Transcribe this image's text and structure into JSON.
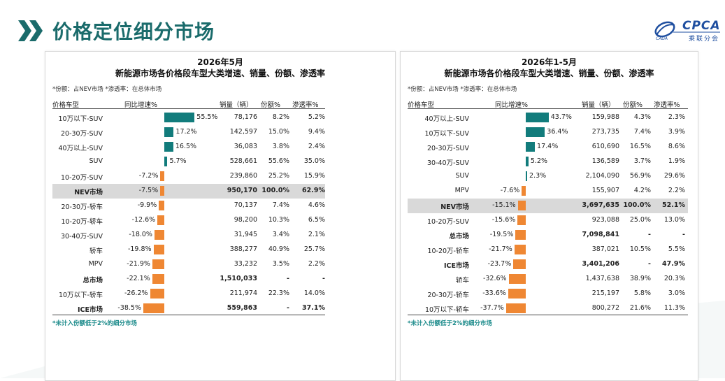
{
  "header": {
    "title": "价格定位细分市场",
    "logo_text": "CPCA",
    "logo_sub": "乘联分会",
    "logo_small": "CADA",
    "brand_color": "#1a6b6b",
    "chevron_color": "#1a6b6b",
    "logo_color": "#1f4fa0"
  },
  "colors": {
    "positive_bar": "#127c7c",
    "negative_bar": "#ef8733",
    "highlight_row": "#d9d9d9"
  },
  "left": {
    "title1": "2026年5月",
    "title2": "新能源市场各价格段车型大类增速、销量、份额、渗透率",
    "note": "*份额：占NEV市场  *渗透率：在总体市场",
    "columns": {
      "name": "价格车型",
      "growth": "同比增速%",
      "sales": "销量（辆）",
      "share": "份额%",
      "penetration": "渗透率%"
    },
    "footnote": "*未计入份额低于2%的细分市场",
    "rows": [
      {
        "name": "10万以下-SUV",
        "growth": 55.5,
        "growth_label": "55.5%",
        "sales": "78,176",
        "share": "8.2%",
        "penetration": "5.2%"
      },
      {
        "name": "20-30万-SUV",
        "growth": 17.2,
        "growth_label": "17.2%",
        "sales": "142,597",
        "share": "15.0%",
        "penetration": "9.4%"
      },
      {
        "name": "40万以上-SUV",
        "growth": 16.5,
        "growth_label": "16.5%",
        "sales": "36,083",
        "share": "3.8%",
        "penetration": "2.4%"
      },
      {
        "name": "SUV",
        "growth": 5.7,
        "growth_label": "5.7%",
        "sales": "528,661",
        "share": "55.6%",
        "penetration": "35.0%"
      },
      {
        "name": "10-20万-SUV",
        "growth": -7.2,
        "growth_label": "-7.2%",
        "sales": "239,860",
        "share": "25.2%",
        "penetration": "15.9%"
      },
      {
        "name": "NEV市场",
        "growth": -7.5,
        "growth_label": "-7.5%",
        "sales": "950,170",
        "share": "100.0%",
        "penetration": "62.9%",
        "bold": true,
        "highlight": true
      },
      {
        "name": "20-30万-轿车",
        "growth": -9.9,
        "growth_label": "-9.9%",
        "sales": "70,137",
        "share": "7.4%",
        "penetration": "4.6%"
      },
      {
        "name": "10-20万-轿车",
        "growth": -12.6,
        "growth_label": "-12.6%",
        "sales": "98,200",
        "share": "10.3%",
        "penetration": "6.5%"
      },
      {
        "name": "30-40万-SUV",
        "growth": -18.0,
        "growth_label": "-18.0%",
        "sales": "31,945",
        "share": "3.4%",
        "penetration": "2.1%"
      },
      {
        "name": "轿车",
        "growth": -19.8,
        "growth_label": "-19.8%",
        "sales": "388,277",
        "share": "40.9%",
        "penetration": "25.7%"
      },
      {
        "name": "MPV",
        "growth": -21.9,
        "growth_label": "-21.9%",
        "sales": "33,232",
        "share": "3.5%",
        "penetration": "2.2%"
      },
      {
        "name": "总市场",
        "growth": -22.1,
        "growth_label": "-22.1%",
        "sales": "1,510,033",
        "share": "-",
        "penetration": "-",
        "bold": true
      },
      {
        "name": "10万以下-轿车",
        "growth": -26.2,
        "growth_label": "-26.2%",
        "sales": "211,974",
        "share": "22.3%",
        "penetration": "14.0%"
      },
      {
        "name": "ICE市场",
        "growth": -38.5,
        "growth_label": "-38.5%",
        "sales": "559,863",
        "share": "-",
        "penetration": "37.1%",
        "bold": true
      }
    ]
  },
  "right": {
    "title1": "2026年1-5月",
    "title2": "新能源市场各价格段车型大类增速、销量、份额、渗透率",
    "note": "*份额：占NEV市场  *渗透率：在总体市场",
    "columns": {
      "name": "价格车型",
      "growth": "同比增速%",
      "sales": "销量（辆）",
      "share": "份额%",
      "penetration": "渗透率%"
    },
    "footnote": "*未计入份额低于2%的细分市场",
    "rows": [
      {
        "name": "40万以上-SUV",
        "growth": 43.7,
        "growth_label": "43.7%",
        "sales": "159,988",
        "share": "4.3%",
        "penetration": "2.3%"
      },
      {
        "name": "10万以下-SUV",
        "growth": 36.4,
        "growth_label": "36.4%",
        "sales": "273,735",
        "share": "7.4%",
        "penetration": "3.9%"
      },
      {
        "name": "20-30万-SUV",
        "growth": 17.4,
        "growth_label": "17.4%",
        "sales": "610,690",
        "share": "16.5%",
        "penetration": "8.6%"
      },
      {
        "name": "30-40万-SUV",
        "growth": 5.2,
        "growth_label": "5.2%",
        "sales": "136,589",
        "share": "3.7%",
        "penetration": "1.9%"
      },
      {
        "name": "SUV",
        "growth": 2.3,
        "growth_label": "2.3%",
        "sales": "2,104,090",
        "share": "56.9%",
        "penetration": "29.6%"
      },
      {
        "name": "MPV",
        "growth": -7.6,
        "growth_label": "-7.6%",
        "sales": "155,907",
        "share": "4.2%",
        "penetration": "2.2%"
      },
      {
        "name": "NEV市场",
        "growth": -15.1,
        "growth_label": "-15.1%",
        "sales": "3,697,635",
        "share": "100.0%",
        "penetration": "52.1%",
        "bold": true,
        "highlight": true
      },
      {
        "name": "10-20万-SUV",
        "growth": -15.6,
        "growth_label": "-15.6%",
        "sales": "923,088",
        "share": "25.0%",
        "penetration": "13.0%"
      },
      {
        "name": "总市场",
        "growth": -19.5,
        "growth_label": "-19.5%",
        "sales": "7,098,841",
        "share": "-",
        "penetration": "-",
        "bold": true
      },
      {
        "name": "10-20万-轿车",
        "growth": -21.7,
        "growth_label": "-21.7%",
        "sales": "387,021",
        "share": "10.5%",
        "penetration": "5.5%"
      },
      {
        "name": "ICE市场",
        "growth": -23.7,
        "growth_label": "-23.7%",
        "sales": "3,401,206",
        "share": "-",
        "penetration": "47.9%",
        "bold": true
      },
      {
        "name": "轿车",
        "growth": -32.6,
        "growth_label": "-32.6%",
        "sales": "1,437,638",
        "share": "38.9%",
        "penetration": "20.3%"
      },
      {
        "name": "20-30万-轿车",
        "growth": -33.6,
        "growth_label": "-33.6%",
        "sales": "215,197",
        "share": "5.8%",
        "penetration": "3.0%"
      },
      {
        "name": "10万以下-轿车",
        "growth": -37.7,
        "growth_label": "-37.7%",
        "sales": "800,272",
        "share": "21.6%",
        "penetration": "11.3%"
      }
    ]
  }
}
